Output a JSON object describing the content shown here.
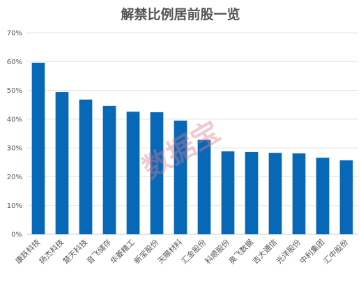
{
  "chart_data": {
    "type": "bar",
    "title": "解禁比例居前股一览",
    "categories": [
      "康跃科技",
      "扬杰科技",
      "楚天科技",
      "音飞储存",
      "华菱精工",
      "新宝股份",
      "天赐材料",
      "汇金股份",
      "科顺股份",
      "奥飞数据",
      "吉大通信",
      "光洋股份",
      "中利集团",
      "汇中股份"
    ],
    "values": [
      59.6,
      49.4,
      46.8,
      44.6,
      42.6,
      42.4,
      39.5,
      32.8,
      28.8,
      28.6,
      28.3,
      28.1,
      26.6,
      25.7
    ],
    "ylim": [
      0,
      70
    ],
    "yticks": [
      "0%",
      "10%",
      "20%",
      "30%",
      "40%",
      "50%",
      "60%",
      "70%"
    ],
    "grid": true,
    "bar_color": "#0868b8",
    "watermark": "数据宝"
  }
}
